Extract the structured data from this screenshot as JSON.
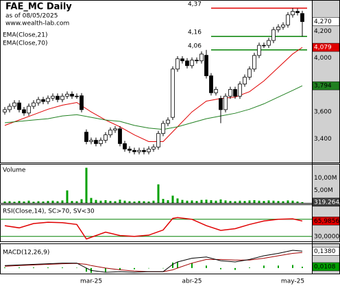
{
  "header": {
    "title": "FAE_MC Daily",
    "subtitle": "as of 08/05/2025",
    "source": "www.wealth-lab.com"
  },
  "chart_data": [
    {
      "type": "candlestick",
      "xlim": [
        -1,
        64
      ],
      "ylim": [
        3.23,
        4.42
      ],
      "yticks": [
        {
          "value": 3.4,
          "label": "3,400"
        },
        {
          "value": 3.6,
          "label": "3,600"
        },
        {
          "value": 4.0,
          "label": "4,000"
        },
        {
          "value": 4.2,
          "label": "4,200"
        }
      ],
      "grid": true,
      "candles": {
        "open": [
          3.6,
          3.617,
          3.642,
          3.667,
          3.617,
          3.592,
          3.642,
          3.667,
          3.692,
          3.677,
          3.702,
          3.717,
          3.692,
          3.717,
          3.732,
          3.717,
          3.72,
          3.45,
          3.38,
          3.39,
          3.365,
          3.39,
          3.43,
          3.465,
          3.475,
          3.365,
          3.325,
          3.315,
          3.305,
          3.315,
          3.305,
          3.325,
          3.34,
          3.44,
          3.515,
          3.56,
          3.918,
          3.994,
          3.979,
          3.943,
          3.984,
          3.979,
          4.02,
          3.868,
          3.742,
          3.7,
          3.617,
          3.717,
          3.767,
          3.717,
          3.807,
          3.858,
          3.918,
          4.019,
          4.094,
          4.094,
          4.13,
          4.21,
          4.23,
          4.245,
          4.32,
          4.346,
          4.33
        ],
        "high": [
          3.637,
          3.662,
          3.687,
          3.687,
          3.637,
          3.662,
          3.687,
          3.712,
          3.712,
          3.722,
          3.737,
          3.737,
          3.737,
          3.752,
          3.752,
          3.737,
          3.74,
          3.47,
          3.41,
          3.41,
          3.41,
          3.45,
          3.485,
          3.495,
          3.495,
          3.385,
          3.345,
          3.335,
          3.335,
          3.335,
          3.345,
          3.36,
          3.46,
          3.535,
          3.56,
          3.938,
          4.014,
          4.014,
          3.999,
          4.004,
          4.004,
          4.049,
          4.06,
          3.888,
          3.787,
          3.72,
          3.737,
          3.787,
          3.787,
          3.827,
          3.878,
          3.938,
          4.039,
          4.114,
          4.114,
          4.15,
          4.23,
          4.25,
          4.265,
          4.34,
          4.37,
          4.366,
          4.35
        ],
        "low": [
          3.58,
          3.597,
          3.622,
          3.597,
          3.572,
          3.572,
          3.622,
          3.647,
          3.657,
          3.657,
          3.682,
          3.672,
          3.672,
          3.697,
          3.697,
          3.697,
          3.597,
          3.36,
          3.36,
          3.345,
          3.345,
          3.37,
          3.41,
          3.445,
          3.345,
          3.305,
          3.295,
          3.285,
          3.285,
          3.285,
          3.285,
          3.305,
          3.32,
          3.42,
          3.495,
          3.54,
          3.898,
          3.959,
          3.923,
          3.923,
          3.959,
          3.959,
          3.848,
          3.722,
          3.722,
          3.517,
          3.597,
          3.697,
          3.697,
          3.697,
          3.787,
          3.838,
          3.898,
          3.999,
          4.074,
          4.074,
          4.11,
          4.19,
          4.21,
          4.225,
          4.3,
          4.316,
          4.16
        ],
        "close": [
          3.617,
          3.642,
          3.667,
          3.617,
          3.592,
          3.642,
          3.667,
          3.692,
          3.677,
          3.702,
          3.717,
          3.692,
          3.717,
          3.732,
          3.717,
          3.717,
          3.617,
          3.38,
          3.39,
          3.365,
          3.39,
          3.43,
          3.465,
          3.475,
          3.365,
          3.325,
          3.315,
          3.305,
          3.315,
          3.305,
          3.325,
          3.34,
          3.44,
          3.515,
          3.54,
          3.918,
          3.994,
          3.979,
          3.943,
          3.984,
          3.979,
          4.029,
          3.868,
          3.742,
          3.767,
          3.617,
          3.717,
          3.767,
          3.717,
          3.807,
          3.858,
          3.918,
          4.019,
          4.094,
          4.094,
          4.13,
          4.21,
          4.23,
          4.245,
          4.32,
          4.346,
          4.336,
          4.27
        ],
        "last_label": "4,270"
      },
      "lines": [
        {
          "name": "EMA(Close,21)",
          "color": "#e00000",
          "last_label": "4,079",
          "x": [
            0,
            3,
            6,
            9,
            12,
            15,
            18,
            21,
            24,
            27,
            30,
            33,
            36,
            39,
            42,
            45,
            48,
            51,
            54,
            57,
            60,
            62
          ],
          "values": [
            3.5,
            3.54,
            3.58,
            3.62,
            3.65,
            3.67,
            3.6,
            3.54,
            3.49,
            3.43,
            3.38,
            3.38,
            3.49,
            3.6,
            3.68,
            3.7,
            3.71,
            3.75,
            3.83,
            3.93,
            4.03,
            4.079
          ]
        },
        {
          "name": "EMA(Close,70)",
          "color": "#208020",
          "last_label": "3,794",
          "x": [
            0,
            3,
            6,
            9,
            12,
            15,
            18,
            21,
            24,
            27,
            30,
            33,
            36,
            39,
            42,
            45,
            48,
            51,
            54,
            57,
            60,
            62
          ],
          "values": [
            3.52,
            3.53,
            3.54,
            3.55,
            3.57,
            3.58,
            3.56,
            3.54,
            3.53,
            3.5,
            3.48,
            3.47,
            3.49,
            3.52,
            3.55,
            3.57,
            3.59,
            3.62,
            3.66,
            3.71,
            3.76,
            3.794
          ]
        }
      ],
      "levels": [
        {
          "value": 4.37,
          "label": "4,37",
          "color": "#e00000"
        },
        {
          "value": 4.16,
          "label": "4,16",
          "color": "#008000"
        },
        {
          "value": 4.06,
          "label": "4,06",
          "color": "#008000"
        }
      ]
    },
    {
      "type": "bar",
      "title": "Volume",
      "color": "#00a000",
      "ylim": [
        0,
        15000000
      ],
      "yticks": [
        {
          "value": 5000000,
          "label": "5,00M"
        },
        {
          "value": 10000000,
          "label": "10,00M"
        }
      ],
      "values": [
        600000,
        700000,
        500000,
        800000,
        600000,
        900000,
        500000,
        700000,
        600000,
        800000,
        900000,
        700000,
        1000000,
        5000000,
        800000,
        700000,
        1500000,
        14000000,
        2000000,
        1200000,
        900000,
        1100000,
        800000,
        700000,
        1300000,
        900000,
        700000,
        600000,
        800000,
        700000,
        600000,
        900000,
        7400000,
        1600000,
        1100000,
        2900000,
        1800000,
        1200000,
        900000,
        1000000,
        800000,
        1200000,
        1300000,
        1100000,
        900000,
        1400000,
        1000000,
        800000,
        700000,
        900000,
        800000,
        1000000,
        1100000,
        900000,
        800000,
        1000000,
        900000,
        800000,
        700000,
        1000000,
        900000,
        600000,
        319264
      ],
      "last_label": "319.264"
    },
    {
      "type": "line",
      "title": "RSI(Close,14), SC>70, SV<30",
      "ylim": [
        20,
        100
      ],
      "yticks": [
        {
          "value": 30,
          "label": "30,0000"
        }
      ],
      "levels": [
        70,
        30
      ],
      "level_color": "#008000",
      "series": [
        {
          "color": "#e00000",
          "last_label": "65,9856",
          "x": [
            0,
            3,
            6,
            9,
            12,
            15,
            17,
            18,
            21,
            24,
            27,
            30,
            33,
            35,
            36,
            39,
            42,
            45,
            48,
            51,
            54,
            57,
            60,
            62
          ],
          "values": [
            55,
            50,
            60,
            63,
            62,
            58,
            24,
            28,
            40,
            32,
            30,
            33,
            45,
            72,
            74,
            70,
            55,
            44,
            48,
            58,
            66,
            70,
            71,
            65.9856
          ]
        }
      ]
    },
    {
      "type": "macd",
      "title": "MACD(12,26,9)",
      "ylim": [
        -0.04,
        0.19
      ],
      "xticks": [
        {
          "value": 18,
          "label": "mar-25"
        },
        {
          "value": 39,
          "label": "abr-25"
        },
        {
          "value": 60,
          "label": "may-25"
        }
      ],
      "x": [
        0,
        3,
        6,
        9,
        12,
        15,
        17,
        18,
        21,
        24,
        27,
        30,
        33,
        35,
        36,
        39,
        42,
        45,
        48,
        51,
        54,
        57,
        60,
        62
      ],
      "macd": {
        "color": "#000000",
        "last_label": "0,1380",
        "values": [
          0.02,
          0.025,
          0.03,
          0.035,
          0.04,
          0.04,
          0.0,
          -0.02,
          -0.035,
          -0.03,
          -0.035,
          -0.03,
          -0.03,
          0.03,
          0.05,
          0.08,
          0.09,
          0.06,
          0.05,
          0.07,
          0.1,
          0.12,
          0.145,
          0.138
        ]
      },
      "signal": {
        "color": "#a00000",
        "values": [
          0.015,
          0.02,
          0.025,
          0.03,
          0.035,
          0.038,
          0.03,
          0.02,
          0.0,
          -0.015,
          -0.025,
          -0.03,
          -0.03,
          -0.015,
          0.0,
          0.04,
          0.07,
          0.07,
          0.065,
          0.065,
          0.08,
          0.1,
          0.12,
          0.127
        ]
      },
      "histogram": {
        "color": "#00a000",
        "last_label": "0,0108",
        "values": [
          0.005,
          0.005,
          0.005,
          0.005,
          0.005,
          0.002,
          -0.03,
          -0.04,
          -0.035,
          -0.015,
          -0.01,
          0.0,
          0.0,
          0.045,
          0.05,
          0.04,
          0.02,
          -0.01,
          -0.015,
          0.005,
          0.02,
          0.02,
          0.025,
          0.0108
        ]
      }
    }
  ]
}
